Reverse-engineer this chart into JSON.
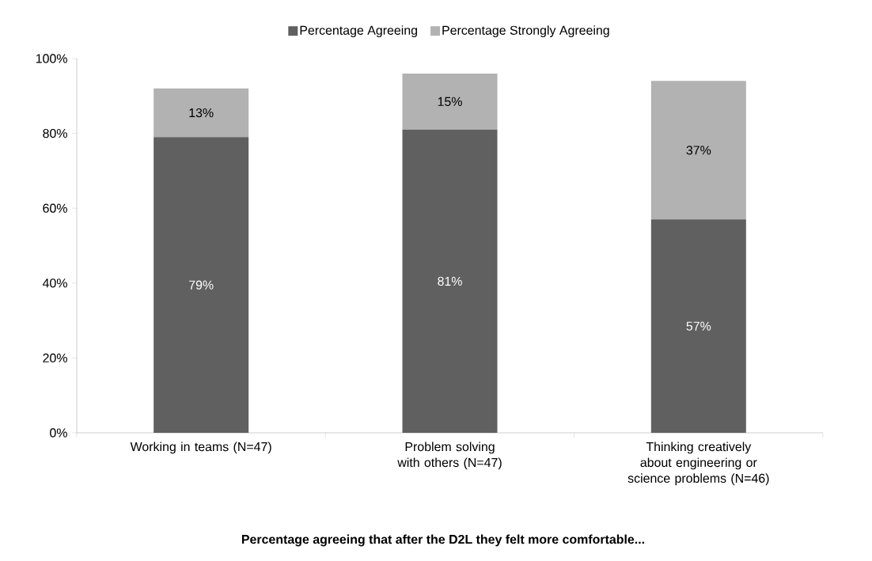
{
  "chart_data": {
    "type": "bar",
    "stacked": true,
    "title": "Percentage agreeing that after the D2L they felt more comfortable...",
    "categories": [
      "Working in teams (N=47)",
      "Problem solving with others (N=47)",
      "Thinking creatively about engineering or science problems (N=46)"
    ],
    "series": [
      {
        "name": "Percentage Agreeing",
        "color": "#606060",
        "values": [
          79,
          81,
          57
        ],
        "value_labels": [
          "79%",
          "81%",
          "57%"
        ]
      },
      {
        "name": "Percentage Strongly Agreeing",
        "color": "#b2b2b2",
        "values": [
          13,
          15,
          37
        ],
        "value_labels": [
          "13%",
          "15%",
          "37%"
        ]
      }
    ],
    "ylim": [
      0,
      100
    ],
    "yticks": [
      {
        "value": 0,
        "label": "0%"
      },
      {
        "value": 20,
        "label": "20%"
      },
      {
        "value": 40,
        "label": "40%"
      },
      {
        "value": 60,
        "label": "60%"
      },
      {
        "value": 80,
        "label": "80%"
      },
      {
        "value": 100,
        "label": "100%"
      }
    ],
    "legend": "top",
    "grid": false
  }
}
